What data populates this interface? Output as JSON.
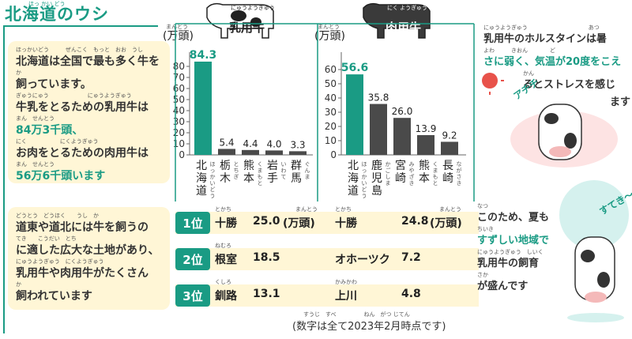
{
  "page_title": "北海道のウシ",
  "page_title_ruby": "ほっ かい どう",
  "intro_box": {
    "lines": [
      {
        "ruby": "ほっかいどう　　　ぜんこく　もっと　おお　うし",
        "text": "北海道は全国で最も多く牛を"
      },
      {
        "ruby": "か",
        "text": "飼っています。"
      },
      {
        "ruby": "ぎゅうにゅう　　　　　　　にゅうようぎゅう",
        "text": "牛乳をとるための乳用牛は"
      },
      {
        "ruby": "まん　せんとう",
        "text": "84万3千頭、"
      },
      {
        "ruby": "にく　　　　　　にくようぎゅう",
        "text": "お肉をとるための肉用牛は"
      },
      {
        "ruby": "まん　せんとう",
        "text": "56万6千頭います"
      }
    ]
  },
  "region_box": {
    "lines": [
      {
        "ruby": "どうとう　どうほく　　うし　か",
        "text": "道東や道北には牛を飼うの"
      },
      {
        "ruby": "てき　　こうだい　とち",
        "text": "に適した広大な土地があり、"
      },
      {
        "ruby": "にゅうようぎゅう　にくようぎゅう",
        "text": "乳用牛や肉用牛がたくさん"
      },
      {
        "ruby": "か",
        "text": "飼われています"
      }
    ]
  },
  "chart_data": [
    {
      "type": "bar",
      "title": "乳用牛",
      "title_ruby": "にゅうようぎゅう",
      "ylabel": "(万頭)",
      "ylabel_ruby": "まんとう",
      "ylim": [
        0,
        90
      ],
      "yticks": [
        0,
        10,
        20,
        30,
        40,
        50,
        60,
        70,
        80
      ],
      "categories": [
        "北海道",
        "栃木",
        "熊本",
        "岩手",
        "群馬"
      ],
      "category_ruby": [
        "ほっかいどう",
        "とちぎ",
        "くまもと",
        "いわて",
        "ぐんま"
      ],
      "values": [
        84.3,
        5.4,
        4.4,
        4.0,
        3.3
      ],
      "value_labels": [
        "84.3",
        "5.4",
        "4.4",
        "4.0",
        "3.3"
      ],
      "highlight_color": "#1a9b84",
      "bar_color": "#4a4a4a"
    },
    {
      "type": "bar",
      "title": "肉用牛",
      "title_ruby": "にく ようぎゅう",
      "ylabel": "(万頭)",
      "ylabel_ruby": "まんとう",
      "ylim": [
        0,
        70
      ],
      "yticks": [
        0,
        10,
        20,
        30,
        40,
        50,
        60
      ],
      "categories": [
        "北海道",
        "鹿児島",
        "宮崎",
        "熊本",
        "長崎"
      ],
      "category_ruby": [
        "ほっかいどう",
        "かごしま",
        "みやざき",
        "くまもと",
        "ながさき"
      ],
      "values": [
        56.6,
        35.8,
        26.0,
        13.9,
        9.2
      ],
      "value_labels": [
        "56.6",
        "35.8",
        "26.0",
        "13.9",
        "9.2"
      ],
      "highlight_color": "#1a9b84",
      "bar_color": "#4a4a4a"
    }
  ],
  "ranking": {
    "rows": [
      {
        "rank": "1位",
        "rank_ruby": "い",
        "dairy_area": "十勝",
        "dairy_ruby": "とかち",
        "dairy_value": "25.0",
        "dairy_unit": "(万頭)",
        "dairy_unit_ruby": "まんとう",
        "beef_area": "十勝",
        "beef_ruby": "とかち",
        "beef_value": "24.8",
        "beef_unit": "(万頭)",
        "beef_unit_ruby": "まんとう"
      },
      {
        "rank": "2位",
        "rank_ruby": "い",
        "dairy_area": "根室",
        "dairy_ruby": "ねむろ",
        "dairy_value": "18.5",
        "beef_area": "オホーツク",
        "beef_ruby": "",
        "beef_value": "7.2"
      },
      {
        "rank": "3位",
        "rank_ruby": "い",
        "dairy_area": "釧路",
        "dairy_ruby": "くしろ",
        "dairy_value": "13.1",
        "beef_area": "上川",
        "beef_ruby": "かみかわ",
        "beef_value": "4.8"
      }
    ]
  },
  "footnote": "(数字は全て2023年2月時点です)",
  "footnote_ruby": "すうじ　すべ　　　　　ねん　がつ じてん",
  "heat_text": {
    "lines": [
      {
        "ruby": "にゅうようぎゅう　　　　　　　　　　　あつ",
        "text": "乳用牛のホルスタインは暑"
      },
      {
        "ruby": "よわ　　　きおん　　　　ど",
        "text": "さに弱く、気温が20度をこえ"
      },
      {
        "ruby": "かん",
        "text": "るとストレスを感じ"
      },
      {
        "ruby": "",
        "text": "ます"
      }
    ]
  },
  "cool_text": {
    "lines": [
      {
        "ruby": "なつ",
        "text": "このため、夏も"
      },
      {
        "ruby": "ちいき",
        "text": "すずしい地域で"
      },
      {
        "ruby": "にゅうようぎゅう　しいく",
        "text": "乳用牛の飼育"
      },
      {
        "ruby": "さか",
        "text": "が盛んです"
      }
    ]
  },
  "exclaim_hot": "アチチ",
  "exclaim_cool": "すてき〜 かいてき〜",
  "colors": {
    "accent": "#1a9b84",
    "bar": "#4a4a4a",
    "cream": "#fff6d6"
  }
}
